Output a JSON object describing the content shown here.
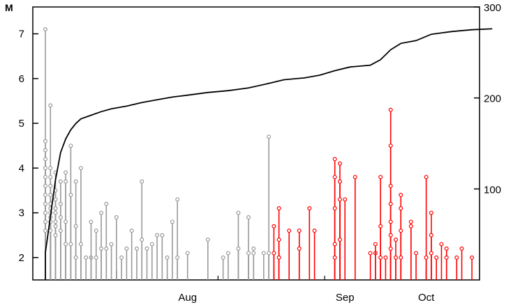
{
  "chart_data": {
    "type": "scatter",
    "title": "",
    "ylabel_left": "M",
    "ylabel_right": "",
    "y_left_range": [
      1.5,
      7.6
    ],
    "y_right_range": [
      0,
      300
    ],
    "y_left_ticks": [
      2,
      3,
      4,
      5,
      6,
      7
    ],
    "y_right_ticks": [
      100,
      200,
      300
    ],
    "x_range": [
      "Jul 18",
      "Oct 6"
    ],
    "x_month_labels": [
      {
        "label": "Aug",
        "date": "Aug 15"
      },
      {
        "label": "Sep",
        "date": "Sep 15"
      },
      {
        "label": "Oct",
        "date": "Oct 1"
      }
    ],
    "x_major_ticks": [
      "Aug 1",
      "Sep 1",
      "Oct 1"
    ],
    "x_minor_ticks": [
      "Jul 24",
      "Aug 11",
      "Aug 21",
      "Sep 11",
      "Sep 21"
    ],
    "grid": false,
    "series": [
      {
        "color": "#999999",
        "points": [
          {
            "x": "Jul 18",
            "y": 7.1
          },
          {
            "x": "Jul 18",
            "y": 4.6
          },
          {
            "x": "Jul 18",
            "y": 4.4
          },
          {
            "x": "Jul 18",
            "y": 4.2
          },
          {
            "x": "Jul 18",
            "y": 4.0
          },
          {
            "x": "Jul 18",
            "y": 3.8
          },
          {
            "x": "Jul 18",
            "y": 3.6
          },
          {
            "x": "Jul 18",
            "y": 3.4
          },
          {
            "x": "Jul 18",
            "y": 3.2
          },
          {
            "x": "Jul 18",
            "y": 3.0
          },
          {
            "x": "Jul 18",
            "y": 2.8
          },
          {
            "x": "Jul 18",
            "y": 2.6
          },
          {
            "x": "Jul 19",
            "y": 5.4
          },
          {
            "x": "Jul 19",
            "y": 4.0
          },
          {
            "x": "Jul 19",
            "y": 3.8
          },
          {
            "x": "Jul 19",
            "y": 3.6
          },
          {
            "x": "Jul 19",
            "y": 3.4
          },
          {
            "x": "Jul 19",
            "y": 3.2
          },
          {
            "x": "Jul 19",
            "y": 3.1
          },
          {
            "x": "Jul 19",
            "y": 3.0
          },
          {
            "x": "Jul 19",
            "y": 2.9
          },
          {
            "x": "Jul 19",
            "y": 2.8
          },
          {
            "x": "Jul 19",
            "y": 2.6
          },
          {
            "x": "Jul 20",
            "y": 3.9
          },
          {
            "x": "Jul 20",
            "y": 3.5
          },
          {
            "x": "Jul 20",
            "y": 3.3
          },
          {
            "x": "Jul 20",
            "y": 3.1
          },
          {
            "x": "Jul 20",
            "y": 3.0
          },
          {
            "x": "Jul 20",
            "y": 2.8
          },
          {
            "x": "Jul 20",
            "y": 2.7
          },
          {
            "x": "Jul 20",
            "y": 2.5
          },
          {
            "x": "Jul 21",
            "y": 3.7
          },
          {
            "x": "Jul 21",
            "y": 3.2
          },
          {
            "x": "Jul 21",
            "y": 2.9
          },
          {
            "x": "Jul 21",
            "y": 2.6
          },
          {
            "x": "Jul 22",
            "y": 3.9
          },
          {
            "x": "Jul 22",
            "y": 3.7
          },
          {
            "x": "Jul 22",
            "y": 2.8
          },
          {
            "x": "Jul 22",
            "y": 2.3
          },
          {
            "x": "Jul 23",
            "y": 4.5
          },
          {
            "x": "Jul 23",
            "y": 3.4
          },
          {
            "x": "Jul 23",
            "y": 2.3
          },
          {
            "x": "Jul 24",
            "y": 3.7
          },
          {
            "x": "Jul 24",
            "y": 2.7
          },
          {
            "x": "Jul 24",
            "y": 2.0
          },
          {
            "x": "Jul 25",
            "y": 4.0
          },
          {
            "x": "Jul 25",
            "y": 2.3
          },
          {
            "x": "Jul 26",
            "y": 2.0
          },
          {
            "x": "Jul 27",
            "y": 2.0
          },
          {
            "x": "Jul 27",
            "y": 2.8
          },
          {
            "x": "Jul 28",
            "y": 2.6
          },
          {
            "x": "Jul 28",
            "y": 2.0
          },
          {
            "x": "Jul 29",
            "y": 3.0
          },
          {
            "x": "Jul 29",
            "y": 2.2
          },
          {
            "x": "Jul 30",
            "y": 3.2
          },
          {
            "x": "Jul 30",
            "y": 2.2
          },
          {
            "x": "Jul 31",
            "y": 2.3
          },
          {
            "x": "Aug 1",
            "y": 2.9
          },
          {
            "x": "Aug 2",
            "y": 2.0
          },
          {
            "x": "Aug 3",
            "y": 2.2
          },
          {
            "x": "Aug 4",
            "y": 2.6
          },
          {
            "x": "Aug 5",
            "y": 2.2
          },
          {
            "x": "Aug 6",
            "y": 3.7
          },
          {
            "x": "Aug 6",
            "y": 2.4
          },
          {
            "x": "Aug 7",
            "y": 2.2
          },
          {
            "x": "Aug 8",
            "y": 2.3
          },
          {
            "x": "Aug 9",
            "y": 2.5
          },
          {
            "x": "Aug 10",
            "y": 2.5
          },
          {
            "x": "Aug 11",
            "y": 2.0
          },
          {
            "x": "Aug 12",
            "y": 2.8
          },
          {
            "x": "Aug 13",
            "y": 3.3
          },
          {
            "x": "Aug 13",
            "y": 2.0
          },
          {
            "x": "Aug 15",
            "y": 2.1
          },
          {
            "x": "Aug 19",
            "y": 2.4
          },
          {
            "x": "Aug 22",
            "y": 2.0
          },
          {
            "x": "Aug 23",
            "y": 2.1
          },
          {
            "x": "Aug 25",
            "y": 3.0
          },
          {
            "x": "Aug 25",
            "y": 2.2
          },
          {
            "x": "Aug 27",
            "y": 2.9
          },
          {
            "x": "Aug 27",
            "y": 2.1
          },
          {
            "x": "Aug 28",
            "y": 2.2
          },
          {
            "x": "Aug 28",
            "y": 2.1
          },
          {
            "x": "Aug 30",
            "y": 2.1
          },
          {
            "x": "Aug 31",
            "y": 4.7
          },
          {
            "x": "Aug 31",
            "y": 2.1
          }
        ]
      },
      {
        "color": "#ff0000",
        "points": [
          {
            "x": "Sep 1",
            "y": 2.7
          },
          {
            "x": "Sep 1",
            "y": 2.1
          },
          {
            "x": "Sep 2",
            "y": 3.1
          },
          {
            "x": "Sep 2",
            "y": 2.4
          },
          {
            "x": "Sep 2",
            "y": 2.0
          },
          {
            "x": "Sep 4",
            "y": 2.6
          },
          {
            "x": "Sep 6",
            "y": 2.6
          },
          {
            "x": "Sep 6",
            "y": 2.2
          },
          {
            "x": "Sep 8",
            "y": 3.1
          },
          {
            "x": "Sep 9",
            "y": 2.6
          },
          {
            "x": "Sep 13",
            "y": 4.2
          },
          {
            "x": "Sep 13",
            "y": 3.8
          },
          {
            "x": "Sep 13",
            "y": 3.1
          },
          {
            "x": "Sep 13",
            "y": 2.3
          },
          {
            "x": "Sep 13",
            "y": 2.0
          },
          {
            "x": "Sep 14",
            "y": 4.1
          },
          {
            "x": "Sep 14",
            "y": 3.7
          },
          {
            "x": "Sep 14",
            "y": 3.3
          },
          {
            "x": "Sep 14",
            "y": 2.4
          },
          {
            "x": "Sep 15",
            "y": 3.3
          },
          {
            "x": "Sep 17",
            "y": 3.8
          },
          {
            "x": "Sep 20",
            "y": 2.1
          },
          {
            "x": "Sep 21",
            "y": 2.1
          },
          {
            "x": "Sep 21",
            "y": 2.3
          },
          {
            "x": "Sep 22",
            "y": 3.8
          },
          {
            "x": "Sep 22",
            "y": 2.7
          },
          {
            "x": "Sep 22",
            "y": 2.0
          },
          {
            "x": "Sep 23",
            "y": 2.0
          },
          {
            "x": "Sep 24",
            "y": 5.3
          },
          {
            "x": "Sep 24",
            "y": 4.5
          },
          {
            "x": "Sep 24",
            "y": 3.6
          },
          {
            "x": "Sep 24",
            "y": 3.2
          },
          {
            "x": "Sep 24",
            "y": 2.8
          },
          {
            "x": "Sep 24",
            "y": 2.5
          },
          {
            "x": "Sep 24",
            "y": 2.2
          },
          {
            "x": "Sep 25",
            "y": 2.4
          },
          {
            "x": "Sep 25",
            "y": 2.0
          },
          {
            "x": "Sep 26",
            "y": 3.4
          },
          {
            "x": "Sep 26",
            "y": 3.1
          },
          {
            "x": "Sep 26",
            "y": 2.6
          },
          {
            "x": "Sep 26",
            "y": 2.0
          },
          {
            "x": "Sep 28",
            "y": 2.8
          },
          {
            "x": "Sep 28",
            "y": 2.7
          },
          {
            "x": "Sep 29",
            "y": 2.1
          },
          {
            "x": "Oct 1",
            "y": 3.8
          },
          {
            "x": "Oct 1",
            "y": 2.0
          },
          {
            "x": "Oct 2",
            "y": 3.0
          },
          {
            "x": "Oct 2",
            "y": 2.5
          },
          {
            "x": "Oct 2",
            "y": 2.1
          },
          {
            "x": "Oct 3",
            "y": 2.0
          },
          {
            "x": "Oct 4",
            "y": 2.3
          },
          {
            "x": "Oct 5",
            "y": 2.2
          },
          {
            "x": "Oct 5",
            "y": 2.0
          },
          {
            "x": "Oct 7",
            "y": 2.0
          },
          {
            "x": "Oct 8",
            "y": 2.2
          },
          {
            "x": "Oct 10",
            "y": 2.0
          }
        ]
      },
      {
        "type": "line",
        "axis": "right",
        "color": "#000000",
        "points": [
          {
            "x": "Jul 18",
            "y": 0
          },
          {
            "x": "Jul 18",
            "y": 30
          },
          {
            "x": "Jul 19",
            "y": 70
          },
          {
            "x": "Jul 20",
            "y": 110
          },
          {
            "x": "Jul 21",
            "y": 140
          },
          {
            "x": "Jul 22",
            "y": 155
          },
          {
            "x": "Jul 23",
            "y": 165
          },
          {
            "x": "Jul 24",
            "y": 172
          },
          {
            "x": "Jul 25",
            "y": 177
          },
          {
            "x": "Jul 27",
            "y": 181
          },
          {
            "x": "Jul 29",
            "y": 185
          },
          {
            "x": "Jul 31",
            "y": 188
          },
          {
            "x": "Aug 3",
            "y": 191
          },
          {
            "x": "Aug 6",
            "y": 195
          },
          {
            "x": "Aug 9",
            "y": 198
          },
          {
            "x": "Aug 12",
            "y": 201
          },
          {
            "x": "Aug 15",
            "y": 203
          },
          {
            "x": "Aug 19",
            "y": 206
          },
          {
            "x": "Aug 23",
            "y": 208
          },
          {
            "x": "Aug 27",
            "y": 211
          },
          {
            "x": "Aug 31",
            "y": 216
          },
          {
            "x": "Sep 3",
            "y": 220
          },
          {
            "x": "Sep 7",
            "y": 222
          },
          {
            "x": "Sep 10",
            "y": 225
          },
          {
            "x": "Sep 13",
            "y": 230
          },
          {
            "x": "Sep 16",
            "y": 234
          },
          {
            "x": "Sep 20",
            "y": 236
          },
          {
            "x": "Sep 22",
            "y": 242
          },
          {
            "x": "Sep 24",
            "y": 253
          },
          {
            "x": "Sep 26",
            "y": 260
          },
          {
            "x": "Sep 29",
            "y": 263
          },
          {
            "x": "Oct 2",
            "y": 270
          },
          {
            "x": "Oct 6",
            "y": 273
          },
          {
            "x": "Oct 10",
            "y": 275
          },
          {
            "x": "Oct 14",
            "y": 276
          }
        ]
      }
    ]
  }
}
